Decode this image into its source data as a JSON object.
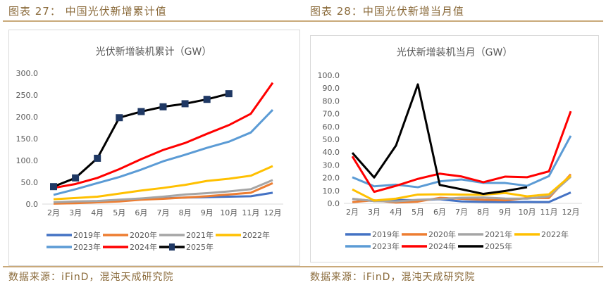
{
  "header": {
    "left": "图表 27： 中国光伏新增累计值",
    "right": "图表 28：中国光伏新增当月值"
  },
  "footer": {
    "left": "数据来源：iFinD，混沌天成研究院",
    "right": "数据来源：iFinD，混沌天成研究院"
  },
  "chart_data": [
    {
      "type": "line",
      "title": "光伏新增装机累计（GW）",
      "categories": [
        "2月",
        "3月",
        "4月",
        "5月",
        "6月",
        "7月",
        "8月",
        "9月",
        "10月",
        "11月",
        "12月"
      ],
      "ylim": [
        0,
        300
      ],
      "yticks": [
        "0.0",
        "50.0",
        "100.0",
        "150.0",
        "200.0",
        "250.0",
        "300.0"
      ],
      "grid": false,
      "legend": "bottom",
      "series": [
        {
          "name": "2019年",
          "color": "#4472c4",
          "values": [
            3,
            4,
            5,
            8,
            11,
            13,
            15,
            16,
            17,
            18,
            26
          ]
        },
        {
          "name": "2020年",
          "color": "#ed7d31",
          "values": [
            1,
            2,
            4,
            6,
            10,
            12,
            15,
            18,
            22,
            26,
            48
          ]
        },
        {
          "name": "2021年",
          "color": "#a5a5a5",
          "values": [
            4,
            6,
            7,
            10,
            13,
            17,
            22,
            25,
            29,
            34,
            55
          ]
        },
        {
          "name": "2022年",
          "color": "#ffc000",
          "values": [
            11,
            14,
            17,
            24,
            31,
            37,
            44,
            53,
            58,
            65,
            87
          ]
        },
        {
          "name": "2023年",
          "color": "#5b9bd5",
          "values": [
            21,
            34,
            48,
            62,
            79,
            98,
            113,
            129,
            143,
            164,
            216
          ]
        },
        {
          "name": "2024年",
          "color": "#ff0000",
          "values": [
            37,
            46,
            60,
            80,
            103,
            124,
            140,
            161,
            181,
            207,
            278
          ]
        },
        {
          "name": "2025年",
          "color": "#000000",
          "marker": "square",
          "markerColor": "#1f3864",
          "values": [
            40,
            60,
            105,
            198,
            212,
            223,
            230,
            240,
            253,
            null,
            null
          ]
        }
      ]
    },
    {
      "type": "line",
      "title": "光伏新增装机当月（GW）",
      "categories": [
        "2月",
        "3月",
        "4月",
        "5月",
        "6月",
        "7月",
        "8月",
        "9月",
        "10月",
        "11月",
        "12月"
      ],
      "ylim": [
        0,
        100
      ],
      "yticks": [
        "0.0",
        "10.0",
        "20.0",
        "30.0",
        "40.0",
        "50.0",
        "60.0",
        "70.0",
        "80.0",
        "90.0",
        "100.0"
      ],
      "grid": false,
      "legend": "bottom",
      "series": [
        {
          "name": "2019年",
          "color": "#4472c4",
          "values": [
            3.5,
            1.8,
            2.7,
            2.5,
            3.2,
            1.5,
            1.2,
            1.0,
            1.1,
            1.0,
            8.5
          ]
        },
        {
          "name": "2020年",
          "color": "#ed7d31",
          "values": [
            1.0,
            2.4,
            0.6,
            1.4,
            4.3,
            3.6,
            2.8,
            2.4,
            4.2,
            4.2,
            22.7
          ]
        },
        {
          "name": "2021年",
          "color": "#a5a5a5",
          "values": [
            3.6,
            1.8,
            1.5,
            2.8,
            3.4,
            4.4,
            4.6,
            3.8,
            3.7,
            5.5,
            20.8
          ]
        },
        {
          "name": "2022年",
          "color": "#ffc000",
          "values": [
            10.9,
            2.2,
            3.7,
            6.9,
            7.1,
            6.9,
            6.7,
            8.1,
            5.5,
            7.1,
            21.7
          ]
        },
        {
          "name": "2023年",
          "color": "#5b9bd5",
          "values": [
            20.4,
            13.3,
            14.6,
            12.6,
            17.2,
            18.7,
            16.0,
            15.9,
            13.7,
            21.3,
            52.8
          ]
        },
        {
          "name": "2024年",
          "color": "#ff0000",
          "values": [
            36.7,
            9.0,
            13.7,
            19.1,
            23.2,
            21.0,
            16.5,
            20.9,
            20.4,
            25.0,
            71.9
          ]
        },
        {
          "name": "2025年",
          "color": "#000000",
          "values": [
            39.5,
            20.2,
            45.2,
            92.9,
            14.4,
            11.0,
            7.4,
            9.7,
            12.6,
            null,
            null
          ]
        }
      ]
    }
  ]
}
